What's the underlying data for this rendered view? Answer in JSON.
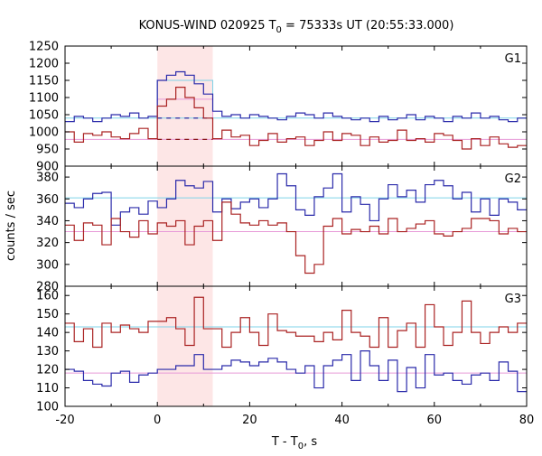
{
  "chart_data": {
    "type": "line",
    "title_text": "KONUS-WIND 020925 T",
    "title_sub": "0",
    "title_rest": " = 75333s UT (20:55:33.000)",
    "xlabel_text": "T - T",
    "xlabel_sub": "0",
    "xlabel_rest": ", s",
    "ylabel": "counts / sec",
    "xlim": [
      -20,
      80
    ],
    "xticks": [
      -20,
      0,
      20,
      40,
      60,
      80
    ],
    "shaded_interval": [
      0,
      12
    ],
    "colors": {
      "upper": "#2a2aaa",
      "lower": "#aa2222",
      "upper_background": "#7fd3e8",
      "lower_background": "#e79ad8",
      "shade": "#fde6e6"
    },
    "x_edges": [
      -20,
      -18,
      -16,
      -14,
      -12,
      -10,
      -8,
      -6,
      -4,
      -2,
      0,
      2,
      4,
      6,
      8,
      10,
      12,
      14,
      16,
      18,
      20,
      22,
      24,
      26,
      28,
      30,
      32,
      34,
      36,
      38,
      40,
      42,
      44,
      46,
      48,
      50,
      52,
      54,
      56,
      58,
      60,
      62,
      64,
      66,
      68,
      70,
      72,
      74,
      76,
      78,
      80
    ],
    "panels": [
      {
        "label": "G1",
        "ylim": [
          900,
          1250
        ],
        "yticks": [
          900,
          950,
          1000,
          1050,
          1100,
          1150,
          1200,
          1250
        ],
        "background_upper": 1040,
        "background_lower": 978,
        "burst_box_upper": 1150,
        "burst_box_lower": 1095,
        "series_upper": [
          1030,
          1045,
          1040,
          1030,
          1040,
          1050,
          1045,
          1055,
          1040,
          1045,
          1150,
          1165,
          1175,
          1165,
          1140,
          1110,
          1060,
          1045,
          1050,
          1040,
          1050,
          1045,
          1040,
          1035,
          1045,
          1055,
          1050,
          1040,
          1055,
          1045,
          1040,
          1035,
          1040,
          1030,
          1045,
          1035,
          1040,
          1050,
          1035,
          1045,
          1040,
          1030,
          1045,
          1040,
          1055,
          1040,
          1045,
          1035,
          1030,
          1040
        ],
        "series_lower": [
          1000,
          970,
          995,
          990,
          1000,
          985,
          980,
          995,
          1010,
          980,
          1075,
          1095,
          1130,
          1100,
          1070,
          1040,
          980,
          1005,
          985,
          990,
          960,
          975,
          995,
          970,
          980,
          985,
          960,
          975,
          1000,
          975,
          995,
          990,
          960,
          985,
          970,
          975,
          1005,
          975,
          980,
          970,
          995,
          990,
          975,
          950,
          980,
          960,
          985,
          965,
          955,
          960
        ]
      },
      {
        "label": "G2",
        "ylim": [
          280,
          390
        ],
        "yticks": [
          280,
          300,
          320,
          340,
          360,
          380
        ],
        "background_upper": 361,
        "background_lower": 330,
        "series_upper": [
          356,
          352,
          360,
          365,
          366,
          336,
          348,
          352,
          346,
          358,
          352,
          360,
          377,
          372,
          370,
          376,
          348,
          360,
          351,
          357,
          360,
          352,
          360,
          383,
          372,
          350,
          345,
          362,
          370,
          383,
          348,
          362,
          355,
          340,
          360,
          373,
          362,
          368,
          357,
          373,
          377,
          372,
          360,
          366,
          348,
          360,
          345,
          360,
          357,
          350
        ],
        "series_lower": [
          336,
          322,
          338,
          336,
          318,
          342,
          330,
          325,
          340,
          328,
          338,
          335,
          340,
          318,
          335,
          340,
          322,
          357,
          346,
          338,
          336,
          340,
          336,
          338,
          330,
          308,
          292,
          300,
          335,
          342,
          328,
          332,
          330,
          335,
          328,
          342,
          330,
          333,
          337,
          340,
          328,
          326,
          330,
          333,
          342,
          342,
          340,
          328,
          333,
          330
        ]
      },
      {
        "label": "G3",
        "ylim": [
          100,
          165
        ],
        "yticks": [
          100,
          110,
          120,
          130,
          140,
          150,
          160
        ],
        "background_upper": 143,
        "background_lower": 118,
        "series_upper": [
          120,
          119,
          114,
          112,
          111,
          118,
          119,
          113,
          117,
          118,
          120,
          120,
          122,
          122,
          128,
          120,
          120,
          122,
          125,
          124,
          122,
          124,
          126,
          124,
          120,
          118,
          122,
          110,
          122,
          125,
          128,
          114,
          130,
          122,
          114,
          125,
          108,
          121,
          110,
          128,
          117,
          118,
          114,
          112,
          117,
          118,
          114,
          124,
          119,
          108
        ],
        "series_lower": [
          145,
          135,
          142,
          132,
          145,
          140,
          144,
          142,
          140,
          146,
          146,
          148,
          142,
          133,
          159,
          142,
          142,
          132,
          140,
          148,
          140,
          133,
          150,
          141,
          140,
          138,
          138,
          135,
          140,
          136,
          152,
          140,
          138,
          132,
          148,
          132,
          141,
          145,
          132,
          155,
          143,
          133,
          140,
          157,
          140,
          134,
          140,
          143,
          140,
          145
        ]
      }
    ]
  }
}
